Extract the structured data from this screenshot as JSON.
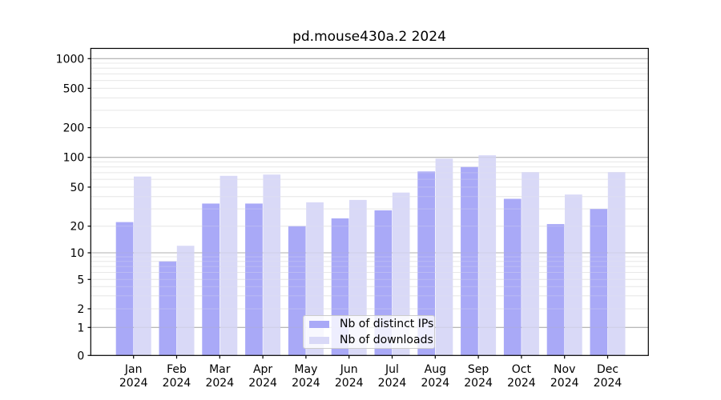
{
  "chart_data": {
    "type": "bar",
    "title": "pd.mouse430a.2 2024",
    "categories": [
      "Jan",
      "Feb",
      "Mar",
      "Apr",
      "May",
      "Jun",
      "Jul",
      "Aug",
      "Sep",
      "Oct",
      "Nov",
      "Dec"
    ],
    "x_year_label": "2024",
    "series": [
      {
        "name": "Nb of distinct IPs",
        "color": "#a9a9f7",
        "values": [
          22,
          8,
          34,
          34,
          20,
          24,
          29,
          72,
          80,
          38,
          21,
          30
        ]
      },
      {
        "name": "Nb of downloads",
        "color": "#d9d9f7",
        "values": [
          64,
          12,
          65,
          67,
          35,
          37,
          44,
          97,
          105,
          71,
          42,
          71
        ]
      }
    ],
    "yscale": "log-like",
    "yticks": [
      0,
      1,
      2,
      5,
      10,
      20,
      50,
      100,
      200,
      500,
      1000
    ],
    "ylim": [
      0,
      1270
    ],
    "xlabel": "",
    "ylabel": "",
    "grid": true,
    "legend_position": "lower center"
  },
  "colors": {
    "background": "#ffffff",
    "axis": "#000000",
    "text": "#000000",
    "major_grid": "#b0b0b0",
    "minor_grid": "#e8e8e8",
    "legend_border": "#cccccc"
  }
}
